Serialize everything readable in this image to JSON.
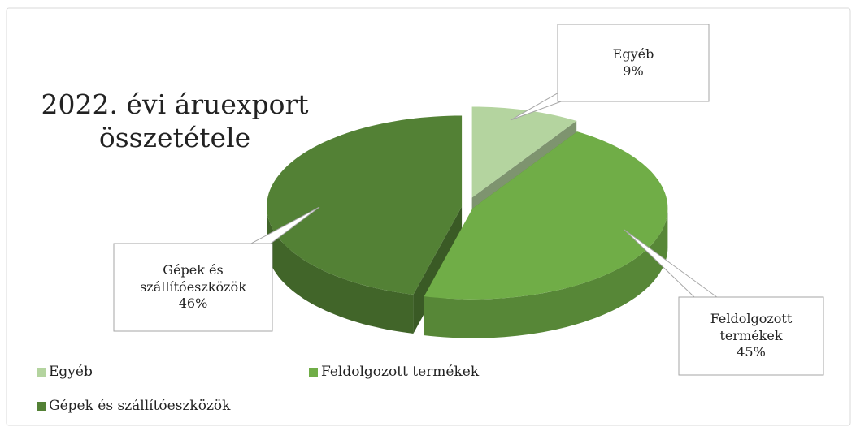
{
  "chart_data": {
    "type": "pie",
    "title": "2022. évi áruexport összetétele",
    "categories": [
      "Egyéb",
      "Feldolgozott termékek",
      "Gépek és szállítóeszközök"
    ],
    "values": [
      9,
      45,
      46
    ],
    "value_labels": [
      "9%",
      "45%",
      "46%"
    ],
    "colors": [
      "#b4d49f",
      "#70ad47",
      "#538135"
    ],
    "legend": "bottom"
  }
}
